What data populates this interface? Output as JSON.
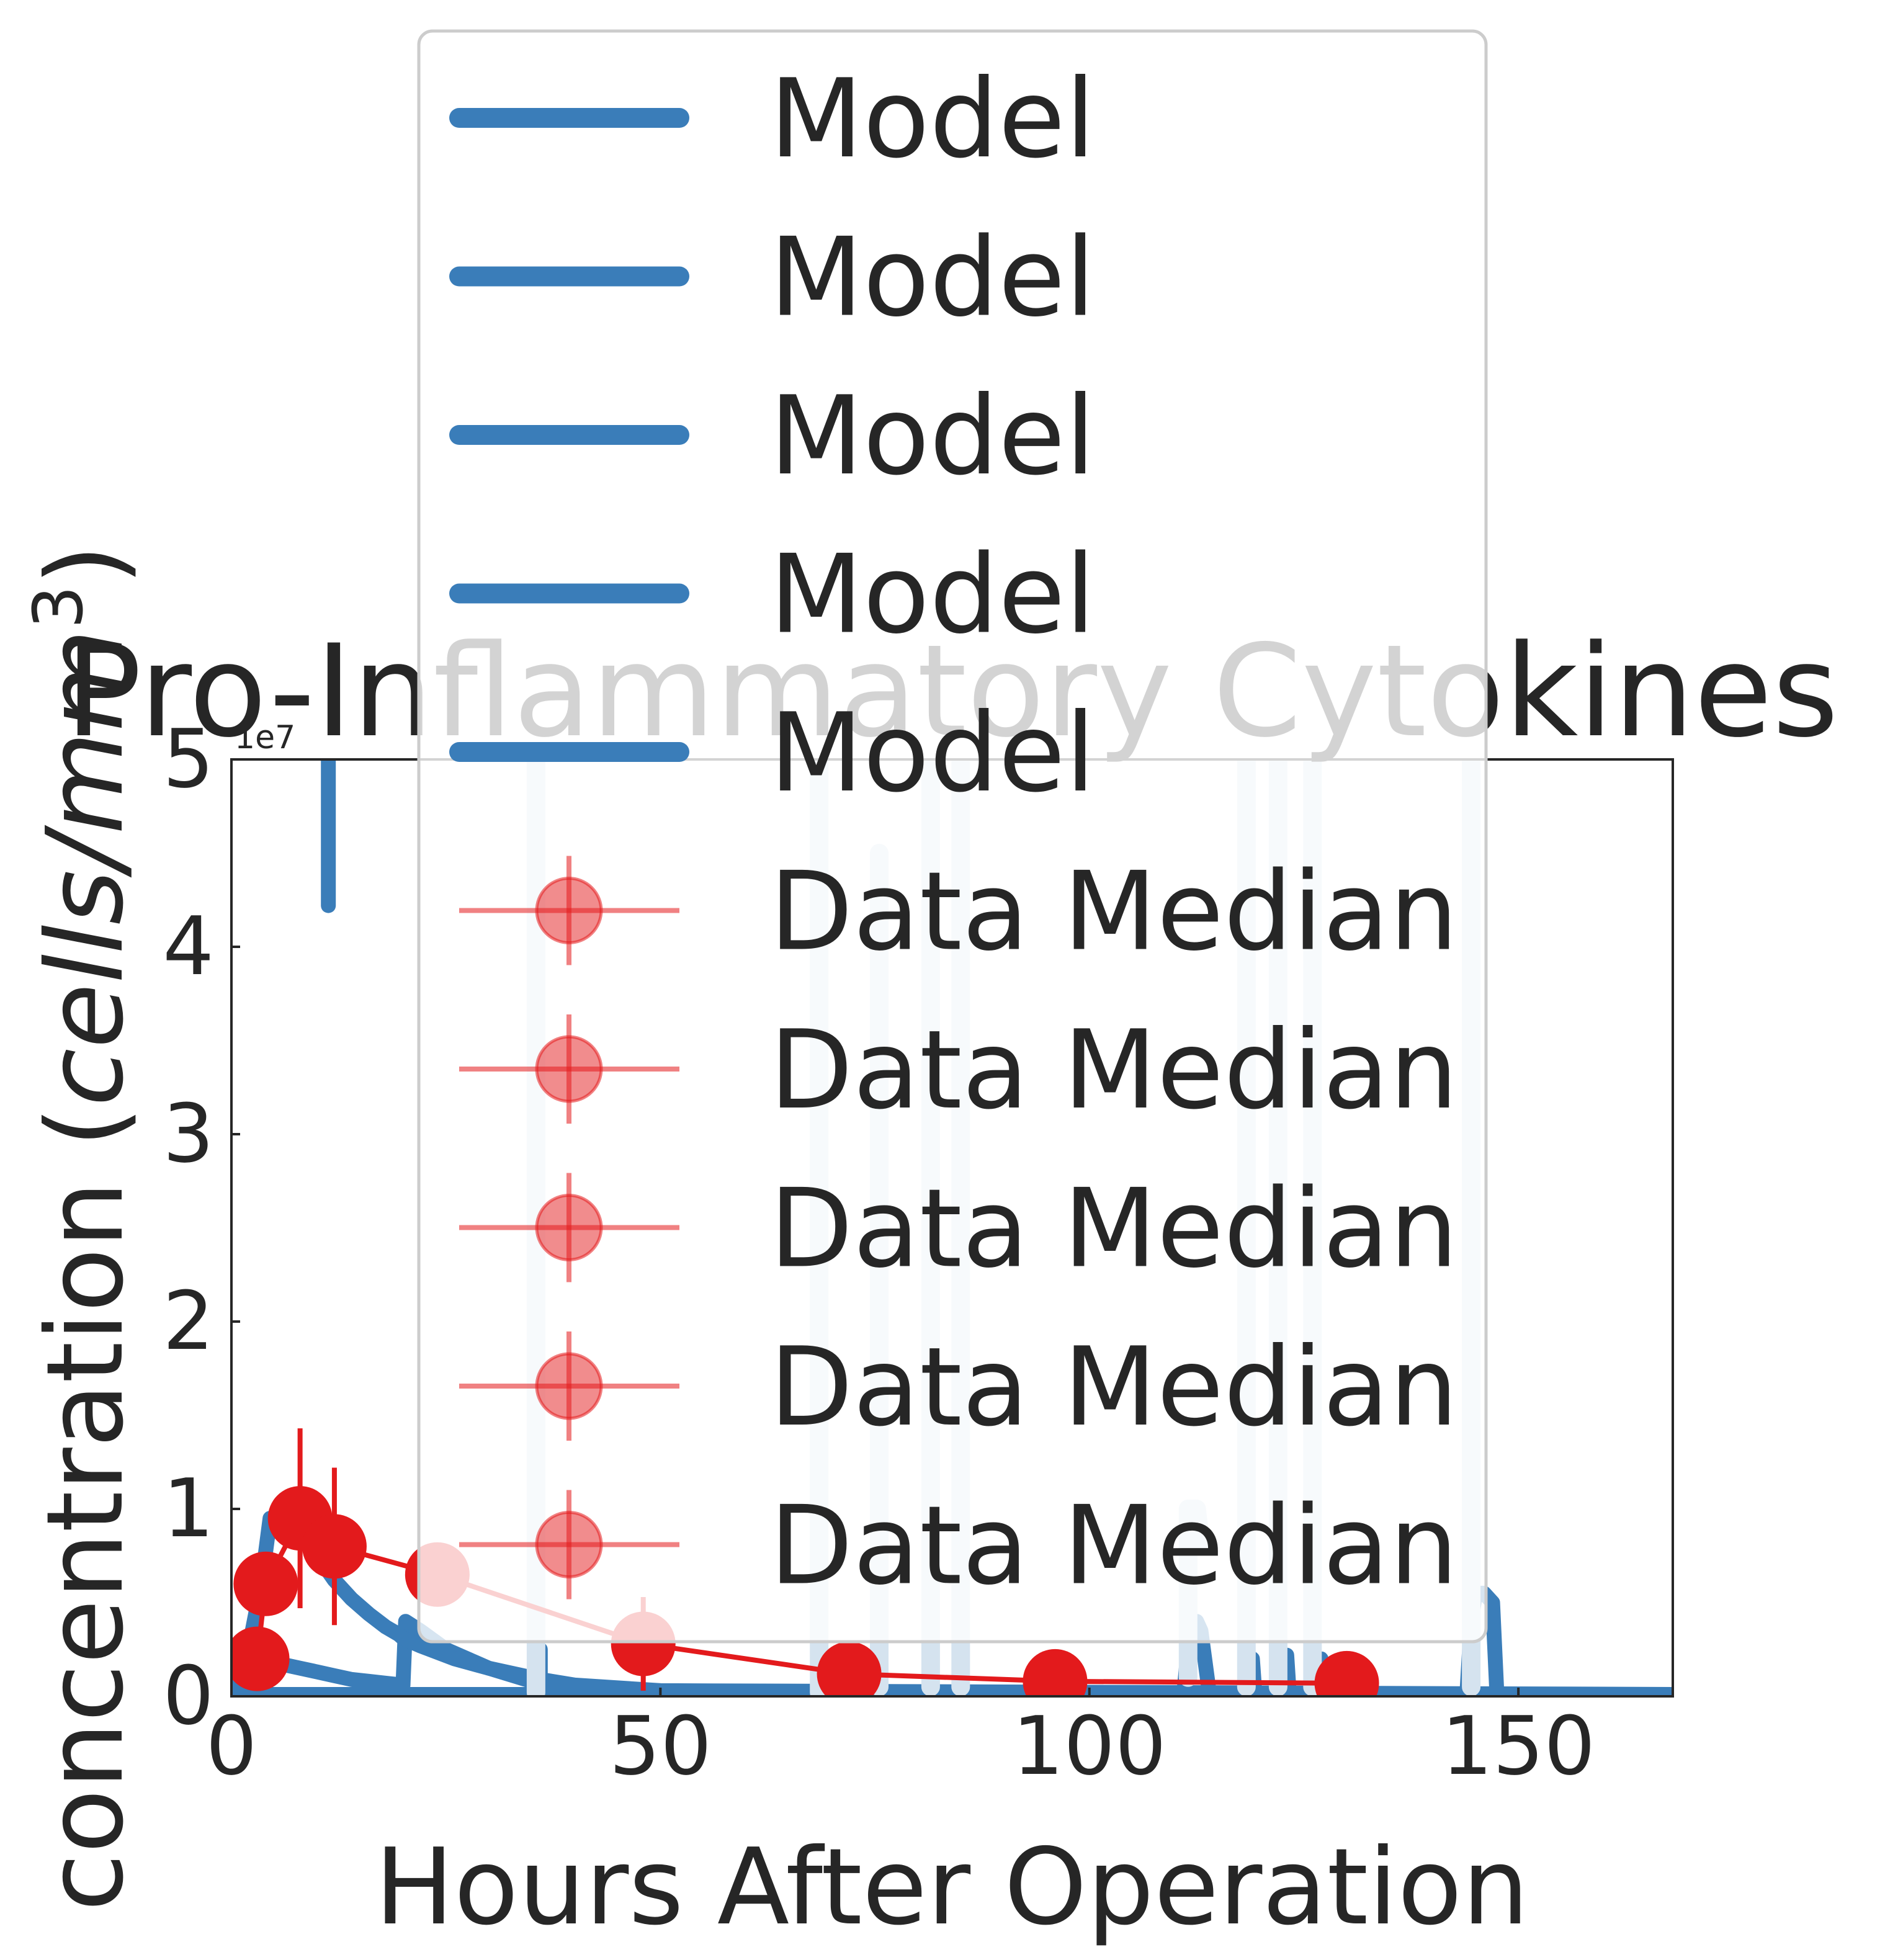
{
  "chart_data": {
    "type": "line",
    "title": "Pro-Inflammatory Cytokines",
    "xlabel": "Hours After Operation",
    "ylabel": "concentration (cells/mm³)",
    "ylabel_parts": {
      "prefix": "concentration (",
      "italic": "cells/mm",
      "sup": "3",
      "suffix": ")"
    },
    "y_offset_label": "1e7",
    "xlim": [
      0,
      168
    ],
    "ylim": [
      0,
      5
    ],
    "y_multiplier": 10000000,
    "x_ticks": [
      0,
      50,
      100,
      150
    ],
    "x_tick_labels": [
      "0",
      "50",
      "100",
      "150"
    ],
    "y_ticks": [
      0,
      1,
      2,
      3,
      4,
      5
    ],
    "y_tick_labels": [
      "0",
      "1",
      "2",
      "3",
      "4",
      "5"
    ],
    "grid": false,
    "legend_placement": "upper center",
    "legend_entries": [
      "Model",
      "Model",
      "Model",
      "Model",
      "Model",
      "Data Median",
      "Data Median",
      "Data Median",
      "Data Median",
      "Data Median"
    ],
    "colors": {
      "model": "#3a7db9",
      "model_faint": "#d5e3ef",
      "data": "#e31a1c"
    },
    "series": [
      {
        "name": "Model",
        "style": "model",
        "x": [
          0,
          1,
          2,
          3,
          4,
          5,
          6,
          8,
          10,
          12,
          14,
          16,
          18,
          20,
          20.3,
          22,
          25,
          30,
          35,
          38,
          45,
          60,
          100,
          168
        ],
        "y": [
          0,
          0.15,
          0.2,
          0.2,
          0.19,
          0.18,
          0.17,
          0.15,
          0.13,
          0.11,
          0.09,
          0.08,
          0.07,
          0.06,
          0.4,
          0.35,
          0.25,
          0.15,
          0.08,
          0.04,
          0.02,
          0.01,
          0.005,
          0.005
        ]
      },
      {
        "name": "Model",
        "style": "model",
        "x": [
          0,
          2,
          3.5,
          4.5,
          6,
          8,
          10,
          12,
          14,
          16,
          18,
          19.5,
          20,
          22,
          26,
          30,
          36,
          40,
          50,
          168
        ],
        "y": [
          0,
          0.25,
          0.6,
          0.95,
          0.95,
          0.88,
          0.75,
          0.62,
          0.52,
          0.44,
          0.37,
          0.33,
          0.31,
          0.27,
          0.2,
          0.15,
          0.09,
          0.06,
          0.03,
          0.01
        ]
      },
      {
        "name": "Model",
        "style": "model",
        "x": [
          11.3,
          11.3
        ],
        "y": [
          5,
          4.22
        ]
      },
      {
        "name": "Model",
        "style": "model",
        "x": [
          35.5,
          35.5,
          36,
          36
        ],
        "y": [
          0,
          0.25,
          0.25,
          0
        ]
      },
      {
        "name": "Model",
        "style": "model",
        "x": [
          0,
          20,
          40,
          60,
          80,
          100,
          111,
          111.5,
          112.5,
          113,
          114,
          118,
          118.3,
          119,
          119.3,
          122,
          122.3,
          123,
          123.3,
          126,
          126.3,
          127,
          127.3,
          144,
          144.5,
          145,
          146,
          147,
          147.5,
          168
        ],
        "y": [
          0.01,
          0.01,
          0.01,
          0.01,
          0.01,
          0.01,
          0.01,
          0.25,
          0.4,
          0.35,
          0.01,
          0.01,
          0.2,
          0.2,
          0.01,
          0.01,
          0.22,
          0.22,
          0.01,
          0.01,
          0.2,
          0.2,
          0.01,
          0.01,
          0.4,
          0.55,
          0.55,
          0.5,
          0.01,
          0.01
        ]
      },
      {
        "name": "Model",
        "style": "model_faint",
        "x": [
          35.5,
          35.5
        ],
        "y": [
          0.02,
          5
        ]
      },
      {
        "name": "Model",
        "style": "model_faint",
        "x": [
          68.5,
          68.5
        ],
        "y": [
          0.02,
          5
        ]
      },
      {
        "name": "Model",
        "style": "model_faint",
        "x": [
          75.5,
          75.5
        ],
        "y": [
          0.05,
          4.5
        ]
      },
      {
        "name": "Model",
        "style": "model_faint",
        "x": [
          81.5,
          81.5
        ],
        "y": [
          0.05,
          5
        ]
      },
      {
        "name": "Model",
        "style": "model_faint",
        "x": [
          85,
          85
        ],
        "y": [
          0.05,
          5
        ]
      },
      {
        "name": "Model",
        "style": "model_faint",
        "x": [
          111.5,
          111.5,
          112.5,
          113
        ],
        "y": [
          0.1,
          1.0,
          1.0,
          0.8
        ]
      },
      {
        "name": "Model",
        "style": "model_faint",
        "x": [
          118.3,
          118.3
        ],
        "y": [
          0.05,
          5
        ]
      },
      {
        "name": "Model",
        "style": "model_faint",
        "x": [
          122,
          122
        ],
        "y": [
          0.05,
          5
        ]
      },
      {
        "name": "Model",
        "style": "model_faint",
        "x": [
          126,
          126
        ],
        "y": [
          0.05,
          5
        ]
      },
      {
        "name": "Model",
        "style": "model_faint",
        "x": [
          144.5,
          144.5
        ],
        "y": [
          0.05,
          5
        ]
      },
      {
        "name": "Data Median",
        "style": "data",
        "x": [
          3,
          4,
          8,
          12,
          24,
          48,
          72,
          96,
          130
        ],
        "y": [
          0.2,
          0.6,
          0.95,
          0.8,
          0.65,
          0.28,
          0.12,
          0.08,
          0.07
        ],
        "yerr": [
          0.1,
          0.15,
          0.48,
          0.42,
          0.15,
          0.25,
          0.08,
          0.05,
          0.05
        ]
      }
    ]
  }
}
